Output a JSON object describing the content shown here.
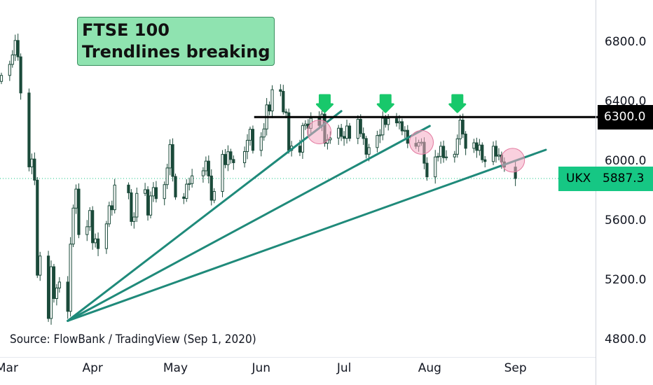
{
  "title_lines": [
    "FTSE 100",
    "Trendlines breaking"
  ],
  "source": "Source: FlowBank / TradingView (Sep 1, 2020)",
  "colors": {
    "candle": "#1b4a3a",
    "trendline": "#1f8a7a",
    "resistance": "#000000",
    "arrow": "#18c86b",
    "break_circle": "#f4a9c3",
    "title_bg": "#8fe3b0",
    "last_price": "#16c784"
  },
  "chart_data": {
    "type": "candlestick",
    "title": "FTSE 100 Trendlines breaking",
    "y_ticks": [
      "4800.0",
      "5200.0",
      "5600.0",
      "6000.0",
      "6400.0",
      "6800.0"
    ],
    "y_tick_values": [
      4800,
      5200,
      5600,
      6000,
      6400,
      6800
    ],
    "ylim": [
      4700,
      7000
    ],
    "x_labels": [
      "Mar",
      "Apr",
      "May",
      "Jun",
      "Jul",
      "Aug",
      "Sep"
    ],
    "x_range": [
      "2020-02-28",
      "2020-09-30"
    ],
    "x_tick_dates": [
      "2020-03-01",
      "2020-04-01",
      "2020-05-01",
      "2020-06-01",
      "2020-07-01",
      "2020-08-01",
      "2020-09-01"
    ],
    "grid": false,
    "resistance": {
      "label": "6300.0",
      "value": 6300,
      "from": "2020-06-01",
      "to": "2020-09-30"
    },
    "last_price": {
      "symbol": "UKX",
      "label": "5887.3",
      "value": 5887.3
    },
    "trendlines": [
      {
        "from": {
          "date": "2020-03-23",
          "value": 4930
        },
        "to": {
          "date": "2020-06-30",
          "value": 6340
        }
      },
      {
        "from": {
          "date": "2020-03-23",
          "value": 4930
        },
        "to": {
          "date": "2020-08-01",
          "value": 6240
        }
      },
      {
        "from": {
          "date": "2020-03-23",
          "value": 4930
        },
        "to": {
          "date": "2020-09-12",
          "value": 6080
        }
      }
    ],
    "arrow_dates": [
      "2020-06-24",
      "2020-07-16",
      "2020-08-11"
    ],
    "break_points": [
      {
        "date": "2020-06-22",
        "value": 6200
      },
      {
        "date": "2020-07-29",
        "value": 6130
      },
      {
        "date": "2020-08-31",
        "value": 6010
      }
    ],
    "series_close": [
      [
        "2020-02-28",
        6580
      ],
      [
        "2020-03-02",
        6654
      ],
      [
        "2020-03-03",
        6718
      ],
      [
        "2020-03-04",
        6815
      ],
      [
        "2020-03-05",
        6705
      ],
      [
        "2020-03-06",
        6462
      ],
      [
        "2020-03-09",
        5965
      ],
      [
        "2020-03-10",
        6018
      ],
      [
        "2020-03-11",
        5876
      ],
      [
        "2020-03-12",
        5237
      ],
      [
        "2020-03-13",
        5366
      ],
      [
        "2020-03-16",
        4946
      ],
      [
        "2020-03-17",
        5294
      ],
      [
        "2020-03-18",
        5080
      ],
      [
        "2020-03-19",
        5151
      ],
      [
        "2020-03-20",
        5191
      ],
      [
        "2020-03-23",
        4994
      ],
      [
        "2020-03-24",
        5446
      ],
      [
        "2020-03-25",
        5688
      ],
      [
        "2020-03-26",
        5816
      ],
      [
        "2020-03-27",
        5510
      ],
      [
        "2020-03-30",
        5563
      ],
      [
        "2020-03-31",
        5672
      ],
      [
        "2020-04-01",
        5455
      ],
      [
        "2020-04-02",
        5481
      ],
      [
        "2020-04-03",
        5416
      ],
      [
        "2020-04-06",
        5582
      ],
      [
        "2020-04-07",
        5704
      ],
      [
        "2020-04-08",
        5677
      ],
      [
        "2020-04-09",
        5843
      ],
      [
        "2020-04-14",
        5791
      ],
      [
        "2020-04-15",
        5598
      ],
      [
        "2020-04-16",
        5628
      ],
      [
        "2020-04-17",
        5787
      ],
      [
        "2020-04-20",
        5812
      ],
      [
        "2020-04-21",
        5641
      ],
      [
        "2020-04-22",
        5770
      ],
      [
        "2020-04-23",
        5826
      ],
      [
        "2020-04-24",
        5752
      ],
      [
        "2020-04-27",
        5846
      ],
      [
        "2020-04-28",
        5958
      ],
      [
        "2020-04-29",
        6115
      ],
      [
        "2020-04-30",
        5901
      ],
      [
        "2020-05-01",
        5763
      ],
      [
        "2020-05-04",
        5753
      ],
      [
        "2020-05-05",
        5849
      ],
      [
        "2020-05-06",
        5853
      ],
      [
        "2020-05-07",
        5905
      ],
      [
        "2020-05-11",
        5939
      ],
      [
        "2020-05-12",
        6004
      ],
      [
        "2020-05-13",
        5904
      ],
      [
        "2020-05-14",
        5741
      ],
      [
        "2020-05-15",
        5800
      ],
      [
        "2020-05-18",
        6049
      ],
      [
        "2020-05-19",
        5980
      ],
      [
        "2020-05-20",
        6067
      ],
      [
        "2020-05-21",
        6015
      ],
      [
        "2020-05-22",
        5993
      ],
      [
        "2020-05-26",
        6068
      ],
      [
        "2020-05-27",
        6144
      ],
      [
        "2020-05-28",
        6218
      ],
      [
        "2020-05-29",
        6076
      ],
      [
        "2020-06-01",
        6166
      ],
      [
        "2020-06-02",
        6220
      ],
      [
        "2020-06-03",
        6382
      ],
      [
        "2020-06-04",
        6341
      ],
      [
        "2020-06-05",
        6484
      ],
      [
        "2020-06-08",
        6473
      ],
      [
        "2020-06-09",
        6335
      ],
      [
        "2020-06-10",
        6329
      ],
      [
        "2020-06-11",
        6076
      ],
      [
        "2020-06-12",
        6105
      ],
      [
        "2020-06-15",
        6064
      ],
      [
        "2020-06-16",
        6243
      ],
      [
        "2020-06-17",
        6253
      ],
      [
        "2020-06-18",
        6224
      ],
      [
        "2020-06-19",
        6292
      ],
      [
        "2020-06-22",
        6244
      ],
      [
        "2020-06-23",
        6320
      ],
      [
        "2020-06-24",
        6124
      ],
      [
        "2020-06-25",
        6147
      ],
      [
        "2020-06-26",
        6159
      ],
      [
        "2020-06-29",
        6225
      ],
      [
        "2020-06-30",
        6170
      ],
      [
        "2020-07-01",
        6157
      ],
      [
        "2020-07-02",
        6240
      ],
      [
        "2020-07-03",
        6157
      ],
      [
        "2020-07-06",
        6285
      ],
      [
        "2020-07-07",
        6189
      ],
      [
        "2020-07-08",
        6156
      ],
      [
        "2020-07-09",
        6050
      ],
      [
        "2020-07-10",
        6095
      ],
      [
        "2020-07-13",
        6176
      ],
      [
        "2020-07-14",
        6180
      ],
      [
        "2020-07-15",
        6292
      ],
      [
        "2020-07-16",
        6250
      ],
      [
        "2020-07-17",
        6290
      ],
      [
        "2020-07-20",
        6261
      ],
      [
        "2020-07-21",
        6269
      ],
      [
        "2020-07-22",
        6207
      ],
      [
        "2020-07-23",
        6211
      ],
      [
        "2020-07-24",
        6124
      ],
      [
        "2020-07-27",
        6104
      ],
      [
        "2020-07-28",
        6129
      ],
      [
        "2020-07-29",
        6131
      ],
      [
        "2020-07-30",
        5990
      ],
      [
        "2020-07-31",
        5898
      ],
      [
        "2020-08-03",
        6032
      ],
      [
        "2020-08-04",
        6036
      ],
      [
        "2020-08-05",
        6104
      ],
      [
        "2020-08-06",
        6027
      ],
      [
        "2020-08-07",
        6032
      ],
      [
        "2020-08-10",
        6050
      ],
      [
        "2020-08-11",
        6154
      ],
      [
        "2020-08-12",
        6280
      ],
      [
        "2020-08-13",
        6186
      ],
      [
        "2020-08-14",
        6090
      ],
      [
        "2020-08-17",
        6127
      ],
      [
        "2020-08-18",
        6076
      ],
      [
        "2020-08-19",
        6112
      ],
      [
        "2020-08-20",
        6013
      ],
      [
        "2020-08-21",
        6001
      ],
      [
        "2020-08-24",
        6104
      ],
      [
        "2020-08-25",
        6037
      ],
      [
        "2020-08-26",
        6045
      ],
      [
        "2020-08-27",
        5999
      ],
      [
        "2020-08-28",
        5964
      ],
      [
        "2020-09-01",
        5887
      ]
    ]
  }
}
